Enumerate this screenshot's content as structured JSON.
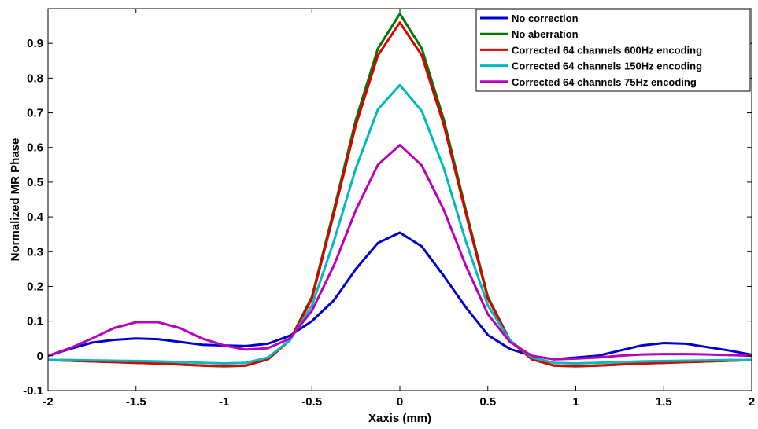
{
  "chart_data": {
    "type": "line",
    "xlabel": "Xaxis (mm)",
    "ylabel": "Normalized MR Phase",
    "xlim": [
      -2,
      2
    ],
    "ylim": [
      -0.1,
      1.0
    ],
    "xticks": [
      -2,
      -1.5,
      -1,
      -0.5,
      0,
      0.5,
      1,
      1.5,
      2
    ],
    "xtick_labels": [
      "-2",
      "-1.5",
      "-1",
      "-0.5",
      "0",
      "0.5",
      "1",
      "1.5",
      "2"
    ],
    "yticks": [
      -0.1,
      0,
      0.1,
      0.2,
      0.3,
      0.4,
      0.5,
      0.6,
      0.7,
      0.8,
      0.9
    ],
    "ytick_labels": [
      "-0.1",
      "0",
      "0.1",
      "0.2",
      "0.3",
      "0.4",
      "0.5",
      "0.6",
      "0.7",
      "0.8",
      "0.9"
    ],
    "grid": false,
    "legend_position": "top-right",
    "x": [
      -2,
      -1.875,
      -1.75,
      -1.625,
      -1.5,
      -1.375,
      -1.25,
      -1.125,
      -1,
      -0.875,
      -0.75,
      -0.625,
      -0.5,
      -0.375,
      -0.25,
      -0.125,
      0,
      0.125,
      0.25,
      0.375,
      0.5,
      0.625,
      0.75,
      0.875,
      1,
      1.125,
      1.25,
      1.375,
      1.5,
      1.625,
      1.75,
      1.875,
      2
    ],
    "series": [
      {
        "name": "No correction",
        "color": "#0000cc",
        "values": [
          0.0,
          0.02,
          0.038,
          0.046,
          0.05,
          0.048,
          0.04,
          0.032,
          0.03,
          0.028,
          0.035,
          0.058,
          0.1,
          0.16,
          0.25,
          0.325,
          0.355,
          0.315,
          0.23,
          0.14,
          0.06,
          0.02,
          0.0,
          -0.01,
          -0.005,
          0.0,
          0.015,
          0.03,
          0.037,
          0.035,
          0.025,
          0.015,
          0.003
        ]
      },
      {
        "name": "No aberration",
        "color": "#007700",
        "values": [
          -0.012,
          -0.014,
          -0.016,
          -0.018,
          -0.02,
          -0.022,
          -0.025,
          -0.028,
          -0.03,
          -0.028,
          -0.01,
          0.045,
          0.17,
          0.42,
          0.68,
          0.885,
          0.985,
          0.885,
          0.68,
          0.42,
          0.17,
          0.045,
          -0.01,
          -0.028,
          -0.03,
          -0.028,
          -0.025,
          -0.022,
          -0.02,
          -0.018,
          -0.016,
          -0.014,
          -0.012
        ]
      },
      {
        "name": "Corrected 64 channels 600Hz encoding",
        "color": "#dd0000",
        "values": [
          -0.012,
          -0.014,
          -0.016,
          -0.018,
          -0.02,
          -0.022,
          -0.025,
          -0.028,
          -0.03,
          -0.028,
          -0.01,
          0.045,
          0.165,
          0.41,
          0.665,
          0.865,
          0.96,
          0.865,
          0.665,
          0.41,
          0.165,
          0.045,
          -0.01,
          -0.028,
          -0.03,
          -0.028,
          -0.025,
          -0.022,
          -0.02,
          -0.018,
          -0.016,
          -0.014,
          -0.012
        ]
      },
      {
        "name": "Corrected 64 channels 150Hz encoding",
        "color": "#00bbbb",
        "values": [
          -0.012,
          -0.012,
          -0.013,
          -0.014,
          -0.015,
          -0.016,
          -0.018,
          -0.02,
          -0.022,
          -0.02,
          -0.005,
          0.045,
          0.145,
          0.33,
          0.54,
          0.71,
          0.78,
          0.705,
          0.54,
          0.33,
          0.145,
          0.045,
          -0.005,
          -0.02,
          -0.022,
          -0.02,
          -0.018,
          -0.016,
          -0.015,
          -0.014,
          -0.013,
          -0.012,
          -0.012
        ]
      },
      {
        "name": "Corrected 64 channels 75Hz encoding",
        "color": "#bb00bb",
        "values": [
          0.0,
          0.022,
          0.05,
          0.08,
          0.097,
          0.097,
          0.08,
          0.05,
          0.03,
          0.018,
          0.022,
          0.05,
          0.13,
          0.26,
          0.42,
          0.55,
          0.607,
          0.548,
          0.42,
          0.26,
          0.12,
          0.04,
          0.0,
          -0.01,
          -0.008,
          -0.005,
          0.0,
          0.004,
          0.005,
          0.005,
          0.004,
          0.002,
          0.0
        ]
      }
    ]
  }
}
